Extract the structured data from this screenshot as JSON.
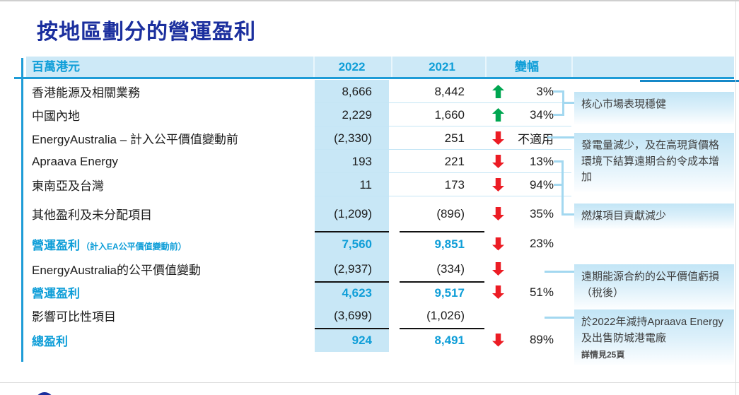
{
  "title": "按地區劃分的營運盈利",
  "table": {
    "columns": {
      "unit": "百萬港元",
      "y2022": "2022",
      "y2021": "2021",
      "change": "變幅"
    },
    "rows": [
      {
        "label": "香港能源及相關業務",
        "v2022": "8,666",
        "v2021": "8,442",
        "arrow": "up",
        "change": "3%"
      },
      {
        "label": "中國內地",
        "v2022": "2,229",
        "v2021": "1,660",
        "arrow": "up",
        "change": "34%"
      },
      {
        "label": "EnergyAustralia – 計入公平價值變動前",
        "v2022": "(2,330)",
        "v2021": "251",
        "arrow": "down",
        "change": "不適用"
      },
      {
        "label": "Apraava Energy",
        "v2022": "193",
        "v2021": "221",
        "arrow": "down",
        "change": "13%"
      },
      {
        "label": "東南亞及台灣",
        "v2022": "11",
        "v2021": "173",
        "arrow": "down",
        "change": "94%"
      },
      {
        "label": "其他盈利及未分配項目",
        "v2022": "(1,209)",
        "v2021": "(896)",
        "arrow": "down",
        "change": "35%"
      },
      {
        "label": "營運盈利",
        "label_suffix": "（計入EA公平價值變動前）",
        "v2022": "7,560",
        "v2021": "9,851",
        "arrow": "down",
        "change": "23%",
        "emphasis": true,
        "rule_above": true
      },
      {
        "label": "EnergyAustralia的公平價值變動",
        "v2022": "(2,937)",
        "v2021": "(334)",
        "arrow": "down",
        "change": ""
      },
      {
        "label": "營運盈利",
        "v2022": "4,623",
        "v2021": "9,517",
        "arrow": "down",
        "change": "51%",
        "emphasis": true,
        "rule_above": true
      },
      {
        "label": "影響可比性項目",
        "v2022": "(3,699)",
        "v2021": "(1,026)",
        "arrow": "none",
        "change": ""
      },
      {
        "label": "總盈利",
        "v2022": "924",
        "v2021": "8,491",
        "arrow": "down",
        "change": "89%",
        "emphasis": true,
        "rule_above": true
      }
    ]
  },
  "annotations": [
    {
      "text": "核心市場表現穩健"
    },
    {
      "text": "發電量減少，及在高現貨價格環境下結算遠期合約令成本增加"
    },
    {
      "text": "燃煤項目貢獻減少"
    },
    {
      "text": "遠期能源合約的公平價值虧損（稅後）"
    },
    {
      "text": "於2022年減持Apraava Energy及出售防城港電廠",
      "note": "詳情見25頁"
    }
  ],
  "colors": {
    "title_navy": "#1B2F9E",
    "accent_cyan": "#0F9ED8",
    "header_bg": "#CDE9F7",
    "col_2022_bg": "#C8E7F6",
    "up_green": "#00A651",
    "down_red": "#EC1C24",
    "connector_blue": "#A3D8F0"
  }
}
